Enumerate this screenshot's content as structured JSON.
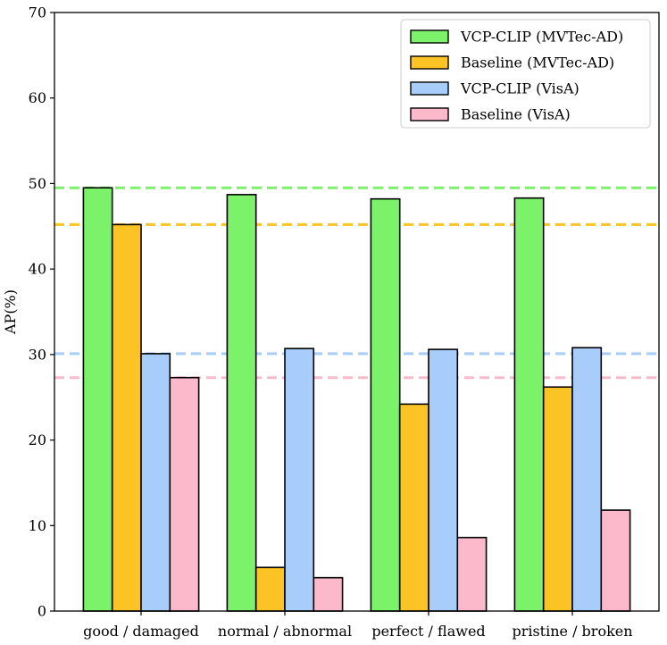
{
  "chart_data": {
    "type": "bar",
    "title": "",
    "xlabel": "",
    "ylabel": "AP(%)",
    "ylim": [
      0,
      70
    ],
    "yticks": [
      0,
      10,
      20,
      30,
      40,
      50,
      60,
      70
    ],
    "categories": [
      "good / damaged",
      "normal / abnormal",
      "perfect / flawed",
      "pristine /  broken"
    ],
    "series": [
      {
        "name": "VCP-CLIP (MVTec-AD)",
        "color": "#7CF26A",
        "values": [
          49.5,
          48.7,
          48.2,
          48.3
        ]
      },
      {
        "name": "Baseline (MVTec-AD)",
        "color": "#FCC325",
        "values": [
          45.2,
          5.1,
          24.2,
          26.2
        ]
      },
      {
        "name": "VCP-CLIP (VisA)",
        "color": "#A8CDFB",
        "values": [
          30.1,
          30.7,
          30.6,
          30.8
        ]
      },
      {
        "name": "Baseline (VisA)",
        "color": "#FCB9CC",
        "values": [
          27.3,
          3.9,
          8.6,
          11.8
        ]
      }
    ],
    "reference_lines": [
      {
        "series": "VCP-CLIP (MVTec-AD)",
        "value": 49.5,
        "color": "#7CF26A"
      },
      {
        "series": "Baseline (MVTec-AD)",
        "value": 45.2,
        "color": "#FCC325"
      },
      {
        "series": "VCP-CLIP (VisA)",
        "value": 30.1,
        "color": "#A8CDFB"
      },
      {
        "series": "Baseline (VisA)",
        "value": 27.3,
        "color": "#FCB9CC"
      }
    ],
    "legend_position": "top-right",
    "grid": false
  }
}
